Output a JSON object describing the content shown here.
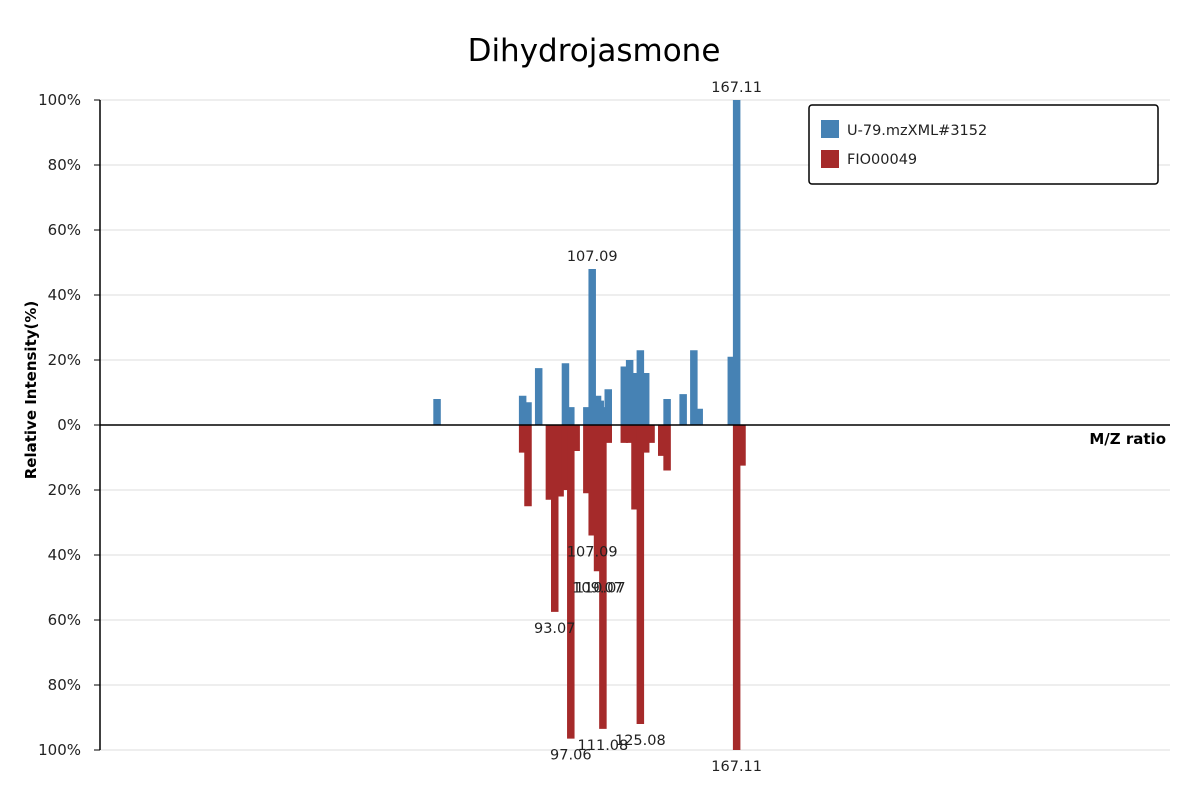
{
  "chart_data": {
    "type": "bar",
    "subtype": "mirror-mass-spectrum",
    "title": "Dihydrojasmone",
    "xlabel": "M/Z ratio",
    "ylabel": "Relative Intensity(%)",
    "ylim": [
      -100,
      100
    ],
    "xlim": [
      0,
      200
    ],
    "y_ticks": [
      {
        "value": 100,
        "label": "100%"
      },
      {
        "value": 80,
        "label": "80%"
      },
      {
        "value": 60,
        "label": "60%"
      },
      {
        "value": 40,
        "label": "40%"
      },
      {
        "value": 20,
        "label": "20%"
      },
      {
        "value": 0,
        "label": "0%"
      },
      {
        "value": -20,
        "label": "20%"
      },
      {
        "value": -40,
        "label": "40%"
      },
      {
        "value": -60,
        "label": "60%"
      },
      {
        "value": -80,
        "label": "80%"
      },
      {
        "value": -100,
        "label": "100%"
      }
    ],
    "grid": true,
    "legend_position": "top-right",
    "series": [
      {
        "name": "U-79.mzXML#3152",
        "color": "#4682b4",
        "direction": "up",
        "points": [
          {
            "mz": 63,
            "intensity": 8
          },
          {
            "mz": 79,
            "intensity": 9
          },
          {
            "mz": 80,
            "intensity": 7
          },
          {
            "mz": 82,
            "intensity": 17.5
          },
          {
            "mz": 87,
            "intensity": 19
          },
          {
            "mz": 88,
            "intensity": 5.5
          },
          {
            "mz": 91,
            "intensity": 5.5
          },
          {
            "mz": 92,
            "intensity": 48
          },
          {
            "mz": 93,
            "intensity": 9
          },
          {
            "mz": 93.5,
            "intensity": 7.5
          },
          {
            "mz": 94,
            "intensity": 5.5
          },
          {
            "mz": 95,
            "intensity": 11
          },
          {
            "mz": 98,
            "intensity": 18
          },
          {
            "mz": 99,
            "intensity": 20
          },
          {
            "mz": 100,
            "intensity": 16
          },
          {
            "mz": 101,
            "intensity": 23
          },
          {
            "mz": 102,
            "intensity": 16
          },
          {
            "mz": 106,
            "intensity": 8
          },
          {
            "mz": 109,
            "intensity": 9.5
          },
          {
            "mz": 111,
            "intensity": 23
          },
          {
            "mz": 112,
            "intensity": 5
          },
          {
            "mz": 118,
            "intensity": 21
          },
          {
            "mz": 119,
            "intensity": 100
          }
        ],
        "labels": [
          {
            "mz": 92,
            "intensity": 48,
            "text": "107.09"
          },
          {
            "mz": 119,
            "intensity": 100,
            "text": "167.11"
          }
        ]
      },
      {
        "name": "FIO00049",
        "color": "#a52a2a",
        "direction": "down",
        "points": [
          {
            "mz": 79,
            "intensity": 8.5
          },
          {
            "mz": 80,
            "intensity": 25
          },
          {
            "mz": 84,
            "intensity": 23
          },
          {
            "mz": 85,
            "intensity": 57.5
          },
          {
            "mz": 86,
            "intensity": 22
          },
          {
            "mz": 87,
            "intensity": 20
          },
          {
            "mz": 88,
            "intensity": 96.5
          },
          {
            "mz": 89,
            "intensity": 8
          },
          {
            "mz": 91,
            "intensity": 21
          },
          {
            "mz": 92,
            "intensity": 34
          },
          {
            "mz": 93,
            "intensity": 45
          },
          {
            "mz": 94,
            "intensity": 93.5
          },
          {
            "mz": 95,
            "intensity": 5.5
          },
          {
            "mz": 98,
            "intensity": 5.5
          },
          {
            "mz": 99,
            "intensity": 5.5
          },
          {
            "mz": 100,
            "intensity": 26
          },
          {
            "mz": 101,
            "intensity": 92
          },
          {
            "mz": 102,
            "intensity": 8.5
          },
          {
            "mz": 103,
            "intensity": 5.5
          },
          {
            "mz": 105,
            "intensity": 9.5
          },
          {
            "mz": 106,
            "intensity": 14
          },
          {
            "mz": 119,
            "intensity": 100
          },
          {
            "mz": 120,
            "intensity": 12.5
          }
        ],
        "labels": [
          {
            "mz": 85,
            "intensity": 57.5,
            "text": "93.07"
          },
          {
            "mz": 88,
            "intensity": 96.5,
            "text": "97.06"
          },
          {
            "mz": 92,
            "intensity": 34,
            "text": "107.09"
          },
          {
            "mz": 93,
            "intensity": 45,
            "text": "109.07"
          },
          {
            "mz": 93.5,
            "intensity": 45,
            "text": "110.07"
          },
          {
            "mz": 94,
            "intensity": 93.5,
            "text": "111.08"
          },
          {
            "mz": 101,
            "intensity": 92,
            "text": "125.08"
          },
          {
            "mz": 119,
            "intensity": 100,
            "text": "167.11"
          }
        ]
      }
    ]
  }
}
